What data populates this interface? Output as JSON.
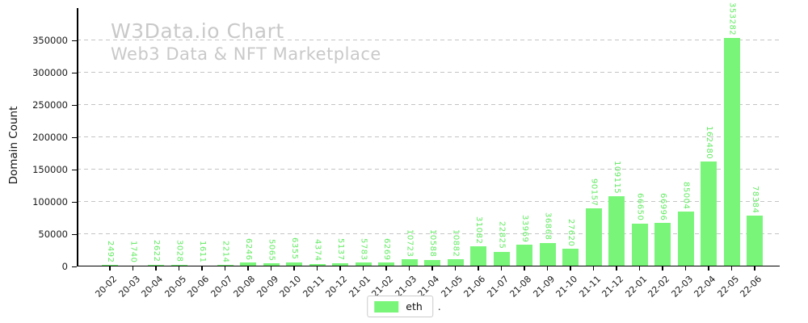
{
  "watermark": {
    "title": "W3Data.io Chart",
    "subtitle": "Web3 Data & NFT Marketplace"
  },
  "colors": {
    "bar": "#79f679",
    "bar_label": "#62ea62",
    "grid": "#c4c4c4",
    "watermark": "#c9c9c9",
    "axis": "#000000",
    "legend_border": "#cccccc"
  },
  "legend": {
    "items": [
      {
        "label": "eth",
        "color": "#79f679"
      }
    ],
    "suffix": ".",
    "position": "bottom-center"
  },
  "chart_data": {
    "type": "bar",
    "title": "W3Data.io Chart",
    "subtitle": "Web3 Data & NFT Marketplace",
    "xlabel": "",
    "ylabel": "Domain Count",
    "series_name": "eth",
    "categories": [
      "20-02",
      "20-03",
      "20-04",
      "20-05",
      "20-06",
      "20-07",
      "20-08",
      "20-09",
      "20-10",
      "20-11",
      "20-12",
      "21-01",
      "21-02",
      "21-03",
      "21-04",
      "21-05",
      "21-06",
      "21-07",
      "21-08",
      "21-09",
      "21-10",
      "21-11",
      "21-12",
      "22-01",
      "22-02",
      "22-03",
      "22-04",
      "22-05",
      "22-06"
    ],
    "values": [
      2492,
      1740,
      2622,
      3028,
      1611,
      2214,
      6246,
      5065,
      6355,
      4374,
      5137,
      5783,
      6269,
      10723,
      10588,
      10882,
      31082,
      22825,
      33969,
      36868,
      27620,
      90157,
      109115,
      66650,
      66996,
      85004,
      162480,
      353282,
      78384
    ],
    "yticks": [
      0,
      50000,
      100000,
      150000,
      200000,
      250000,
      300000,
      350000
    ],
    "ylim": [
      0,
      380000
    ],
    "grid": "horizontal-dashed",
    "bar_value_labels": true,
    "bar_value_label_rotation": "vertical-top-down",
    "x_tick_rotation": 45,
    "legend_position": "bottom-center"
  }
}
